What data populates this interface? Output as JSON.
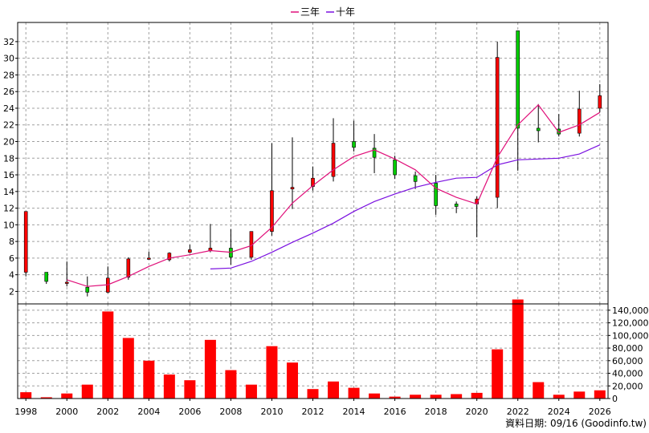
{
  "chart_data": {
    "type": "candlestick",
    "legend": [
      {
        "name": "三年",
        "color": "#e0107a"
      },
      {
        "name": "十年",
        "color": "#7a10e0"
      }
    ],
    "price_axis": {
      "ylim": [
        0.5,
        34.3
      ],
      "ticks": [
        2,
        4,
        6,
        8,
        10,
        12,
        14,
        16,
        18,
        20,
        22,
        24,
        26,
        28,
        30,
        32
      ]
    },
    "volume_axis": {
      "ylim": [
        0,
        150000
      ],
      "ticks": [
        0,
        20000,
        40000,
        60000,
        80000,
        100000,
        120000,
        140000
      ],
      "tick_labels": [
        "0",
        "20,000",
        "40,000",
        "60,000",
        "80,000",
        "100,000",
        "120,000",
        "140,000"
      ]
    },
    "x_axis": {
      "xlim": [
        1997.6,
        2026.4
      ],
      "ticks": [
        1998,
        2000,
        2002,
        2004,
        2006,
        2008,
        2010,
        2012,
        2014,
        2016,
        2018,
        2020,
        2022,
        2024,
        2026
      ]
    },
    "candles": [
      {
        "year": 1998,
        "open": 4.3,
        "close": 11.6,
        "high": 11.6,
        "low": 3.8
      },
      {
        "year": 1999,
        "open": 4.3,
        "close": 3.2,
        "high": 4.3,
        "low": 2.9
      },
      {
        "year": 2000,
        "open": 3.0,
        "close": 3.1,
        "high": 5.6,
        "low": 2.6
      },
      {
        "year": 2001,
        "open": 2.5,
        "close": 1.9,
        "high": 3.8,
        "low": 1.4
      },
      {
        "year": 2002,
        "open": 1.9,
        "close": 3.6,
        "high": 5.0,
        "low": 1.8
      },
      {
        "year": 2003,
        "open": 3.7,
        "close": 5.9,
        "high": 6.1,
        "low": 3.4
      },
      {
        "year": 2004,
        "open": 5.9,
        "close": 6.0,
        "high": 6.8,
        "low": 5.8
      },
      {
        "year": 2005,
        "open": 5.8,
        "close": 6.6,
        "high": 6.7,
        "low": 5.6
      },
      {
        "year": 2006,
        "open": 6.7,
        "close": 7.0,
        "high": 7.6,
        "low": 6.6
      },
      {
        "year": 2007,
        "open": 6.9,
        "close": 7.2,
        "high": 10.1,
        "low": 6.7
      },
      {
        "year": 2008,
        "open": 7.2,
        "close": 6.1,
        "high": 9.5,
        "low": 5.2
      },
      {
        "year": 2009,
        "open": 6.1,
        "close": 9.2,
        "high": 9.2,
        "low": 5.8
      },
      {
        "year": 2010,
        "open": 9.2,
        "close": 14.1,
        "high": 19.8,
        "low": 8.7
      },
      {
        "year": 2011,
        "open": 14.3,
        "close": 14.5,
        "high": 20.5,
        "low": 11.9
      },
      {
        "year": 2012,
        "open": 14.6,
        "close": 15.6,
        "high": 17.0,
        "low": 14.1
      },
      {
        "year": 2013,
        "open": 15.8,
        "close": 19.8,
        "high": 22.8,
        "low": 15.2
      },
      {
        "year": 2014,
        "open": 20.0,
        "close": 19.3,
        "high": 22.5,
        "low": 18.8
      },
      {
        "year": 2015,
        "open": 19.2,
        "close": 18.1,
        "high": 20.9,
        "low": 16.2
      },
      {
        "year": 2016,
        "open": 17.8,
        "close": 16.0,
        "high": 18.3,
        "low": 15.5
      },
      {
        "year": 2017,
        "open": 15.9,
        "close": 15.2,
        "high": 16.4,
        "low": 14.3
      },
      {
        "year": 2018,
        "open": 15.0,
        "close": 12.3,
        "high": 16.0,
        "low": 11.2
      },
      {
        "year": 2019,
        "open": 12.5,
        "close": 12.2,
        "high": 12.8,
        "low": 11.4
      },
      {
        "year": 2020,
        "open": 12.5,
        "close": 13.1,
        "high": 13.4,
        "low": 8.5
      },
      {
        "year": 2021,
        "open": 13.3,
        "close": 30.1,
        "high": 32.0,
        "low": 12.0
      },
      {
        "year": 2022,
        "open": 33.3,
        "close": 21.6,
        "high": 33.3,
        "low": 16.5
      },
      {
        "year": 2023,
        "open": 21.6,
        "close": 21.3,
        "high": 24.5,
        "low": 19.9
      },
      {
        "year": 2024,
        "open": 21.5,
        "close": 20.9,
        "high": 23.3,
        "low": 20.6
      },
      {
        "year": 2025,
        "open": 21.0,
        "close": 23.9,
        "high": 26.1,
        "low": 20.6
      },
      {
        "year": 2026,
        "open": 24.0,
        "close": 25.5,
        "high": 26.9,
        "low": 23.5
      }
    ],
    "ma3": [
      {
        "x": 2000,
        "y": 3.4
      },
      {
        "x": 2001,
        "y": 2.6
      },
      {
        "x": 2002,
        "y": 2.8
      },
      {
        "x": 2003,
        "y": 3.8
      },
      {
        "x": 2004,
        "y": 5.0
      },
      {
        "x": 2005,
        "y": 6.0
      },
      {
        "x": 2006,
        "y": 6.4
      },
      {
        "x": 2007,
        "y": 6.9
      },
      {
        "x": 2008,
        "y": 6.7
      },
      {
        "x": 2009,
        "y": 7.5
      },
      {
        "x": 2010,
        "y": 9.7
      },
      {
        "x": 2011,
        "y": 12.6
      },
      {
        "x": 2012,
        "y": 14.7
      },
      {
        "x": 2013,
        "y": 16.6
      },
      {
        "x": 2014,
        "y": 18.2
      },
      {
        "x": 2015,
        "y": 19.0
      },
      {
        "x": 2016,
        "y": 17.9
      },
      {
        "x": 2017,
        "y": 16.6
      },
      {
        "x": 2018,
        "y": 14.4
      },
      {
        "x": 2019,
        "y": 13.3
      },
      {
        "x": 2020,
        "y": 12.5
      },
      {
        "x": 2021,
        "y": 18.1
      },
      {
        "x": 2022,
        "y": 22.0
      },
      {
        "x": 2023,
        "y": 24.4
      },
      {
        "x": 2024,
        "y": 21.1
      },
      {
        "x": 2025,
        "y": 22.0
      },
      {
        "x": 2026,
        "y": 23.5
      }
    ],
    "ma10": [
      {
        "x": 2007,
        "y": 4.7
      },
      {
        "x": 2008,
        "y": 4.8
      },
      {
        "x": 2009,
        "y": 5.6
      },
      {
        "x": 2010,
        "y": 6.7
      },
      {
        "x": 2011,
        "y": 7.9
      },
      {
        "x": 2012,
        "y": 9.0
      },
      {
        "x": 2013,
        "y": 10.2
      },
      {
        "x": 2014,
        "y": 11.6
      },
      {
        "x": 2015,
        "y": 12.8
      },
      {
        "x": 2016,
        "y": 13.7
      },
      {
        "x": 2017,
        "y": 14.5
      },
      {
        "x": 2018,
        "y": 15.1
      },
      {
        "x": 2019,
        "y": 15.6
      },
      {
        "x": 2020,
        "y": 15.7
      },
      {
        "x": 2021,
        "y": 17.2
      },
      {
        "x": 2022,
        "y": 17.8
      },
      {
        "x": 2023,
        "y": 17.9
      },
      {
        "x": 2024,
        "y": 18.0
      },
      {
        "x": 2025,
        "y": 18.5
      },
      {
        "x": 2026,
        "y": 19.6
      }
    ],
    "volume": [
      {
        "year": 1998,
        "value": 10000
      },
      {
        "year": 1999,
        "value": 2000
      },
      {
        "year": 2000,
        "value": 8000
      },
      {
        "year": 2001,
        "value": 22000
      },
      {
        "year": 2002,
        "value": 138000
      },
      {
        "year": 2003,
        "value": 96000
      },
      {
        "year": 2004,
        "value": 60000
      },
      {
        "year": 2005,
        "value": 38000
      },
      {
        "year": 2006,
        "value": 29000
      },
      {
        "year": 2007,
        "value": 93000
      },
      {
        "year": 2008,
        "value": 45000
      },
      {
        "year": 2009,
        "value": 22000
      },
      {
        "year": 2010,
        "value": 83000
      },
      {
        "year": 2011,
        "value": 57000
      },
      {
        "year": 2012,
        "value": 15000
      },
      {
        "year": 2013,
        "value": 27000
      },
      {
        "year": 2014,
        "value": 17000
      },
      {
        "year": 2015,
        "value": 8000
      },
      {
        "year": 2016,
        "value": 3000
      },
      {
        "year": 2017,
        "value": 6000
      },
      {
        "year": 2018,
        "value": 6000
      },
      {
        "year": 2019,
        "value": 7000
      },
      {
        "year": 2020,
        "value": 9000
      },
      {
        "year": 2021,
        "value": 78000
      },
      {
        "year": 2022,
        "value": 157000
      },
      {
        "year": 2023,
        "value": 26000
      },
      {
        "year": 2024,
        "value": 6000
      },
      {
        "year": 2025,
        "value": 11000
      },
      {
        "year": 2026,
        "value": 13000
      }
    ]
  },
  "source_label": "資料日期: 09/16  (Goodinfo.tw)",
  "colors": {
    "up": "#ff0000",
    "down": "#00cc00",
    "volume": "#ff0000",
    "grid": "#a0a0a0"
  }
}
